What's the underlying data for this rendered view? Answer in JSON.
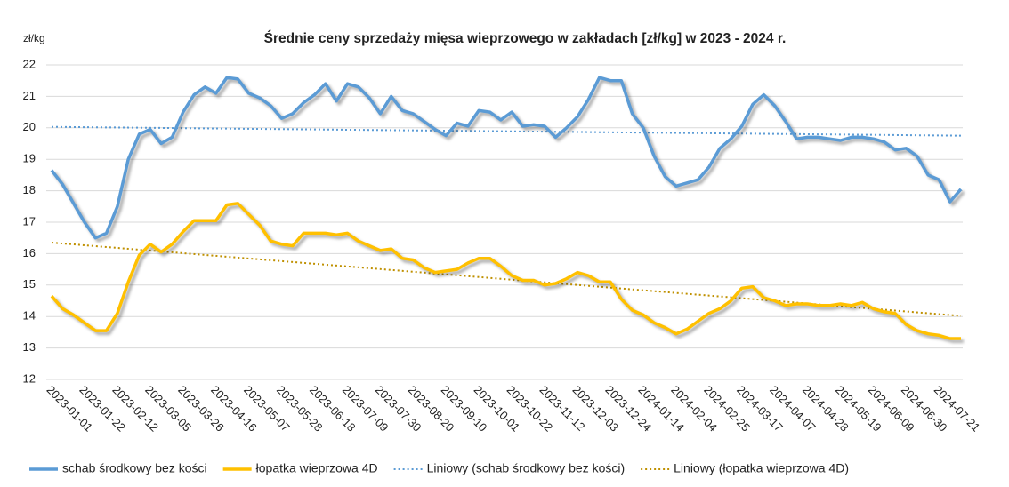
{
  "chart_data": {
    "type": "line",
    "title": "Średnie ceny sprzedaży mięsa wieprzowego w zakładach [zł/kg] w 2023 - 2024 r.",
    "y_label": "zł/kg",
    "categories": [
      "2023-01-01",
      null,
      null,
      "2023-01-22",
      null,
      null,
      "2023-02-12",
      null,
      null,
      "2023-03-05",
      null,
      null,
      "2023-03-26",
      null,
      null,
      "2023-04-16",
      null,
      null,
      "2023-05-07",
      null,
      null,
      "2023-05-28",
      null,
      null,
      "2023-06-18",
      null,
      null,
      "2023-07-09",
      null,
      null,
      "2023-07-30",
      null,
      null,
      "2023-08-20",
      null,
      null,
      "2023-09-10",
      null,
      null,
      "2023-10-01",
      null,
      null,
      "2023-10-22",
      null,
      null,
      "2023-11-12",
      null,
      null,
      "2023-12-03",
      null,
      null,
      "2023-12-24",
      null,
      null,
      "2024-01-14",
      null,
      null,
      "2024-02-04",
      null,
      null,
      "2024-02-25",
      null,
      null,
      "2024-03-17",
      null,
      null,
      "2024-04-07",
      null,
      null,
      "2024-04-28",
      null,
      null,
      "2024-05-19",
      null,
      null,
      "2024-06-09",
      null,
      null,
      "2024-06-30",
      null,
      null,
      "2024-07-21",
      null,
      null
    ],
    "series": [
      {
        "name": "schab środkowy bez kości",
        "color": "#5b9bd5",
        "values": [
          18.65,
          18.2,
          17.6,
          17.0,
          16.5,
          16.65,
          17.5,
          19.0,
          19.8,
          19.95,
          19.5,
          19.7,
          20.5,
          21.05,
          21.3,
          21.1,
          21.6,
          21.55,
          21.1,
          20.95,
          20.7,
          20.3,
          20.45,
          20.8,
          21.05,
          21.4,
          20.85,
          21.4,
          21.3,
          20.95,
          20.45,
          21.0,
          20.55,
          20.45,
          20.2,
          19.95,
          19.75,
          20.15,
          20.05,
          20.55,
          20.5,
          20.25,
          20.5,
          20.05,
          20.1,
          20.05,
          19.7,
          20.0,
          20.35,
          20.9,
          21.6,
          21.5,
          21.5,
          20.45,
          20.0,
          19.1,
          18.45,
          18.15,
          18.25,
          18.35,
          18.75,
          19.35,
          19.65,
          20.05,
          20.75,
          21.05,
          20.7,
          20.2,
          19.65,
          19.7,
          19.7,
          19.65,
          19.6,
          19.7,
          19.7,
          19.65,
          19.55,
          19.3,
          19.35,
          19.1,
          18.5,
          18.35,
          17.65,
          18.05
        ]
      },
      {
        "name": "łopatka wieprzowa 4D",
        "color": "#ffc000",
        "values": [
          14.65,
          14.25,
          14.05,
          13.8,
          13.55,
          13.55,
          14.1,
          15.1,
          15.95,
          16.3,
          16.05,
          16.3,
          16.7,
          17.05,
          17.05,
          17.05,
          17.55,
          17.6,
          17.25,
          16.9,
          16.4,
          16.3,
          16.25,
          16.65,
          16.65,
          16.65,
          16.6,
          16.65,
          16.4,
          16.25,
          16.1,
          16.15,
          15.85,
          15.8,
          15.55,
          15.4,
          15.45,
          15.5,
          15.7,
          15.85,
          15.85,
          15.6,
          15.3,
          15.15,
          15.15,
          15.0,
          15.05,
          15.2,
          15.4,
          15.3,
          15.1,
          15.1,
          14.55,
          14.2,
          14.05,
          13.8,
          13.65,
          13.45,
          13.6,
          13.85,
          14.1,
          14.25,
          14.5,
          14.9,
          14.95,
          14.6,
          14.5,
          14.35,
          14.4,
          14.4,
          14.35,
          14.35,
          14.4,
          14.35,
          14.45,
          14.25,
          14.15,
          14.1,
          13.75,
          13.55,
          13.45,
          13.4,
          13.3,
          13.3
        ]
      }
    ],
    "trendlines": [
      {
        "name": "Liniowy (schab środkowy bez kości)",
        "color": "#5b9bd5",
        "values": [
          20.03,
          19.75
        ]
      },
      {
        "name": "Liniowy (łopatka wieprzowa 4D)",
        "color": "#bf9000",
        "values": [
          16.35,
          14.02
        ]
      }
    ],
    "ylim": [
      12,
      22
    ],
    "yticks": [
      12,
      13,
      14,
      15,
      16,
      17,
      18,
      19,
      20,
      21,
      22
    ],
    "grid": true,
    "legend": "bottom"
  }
}
